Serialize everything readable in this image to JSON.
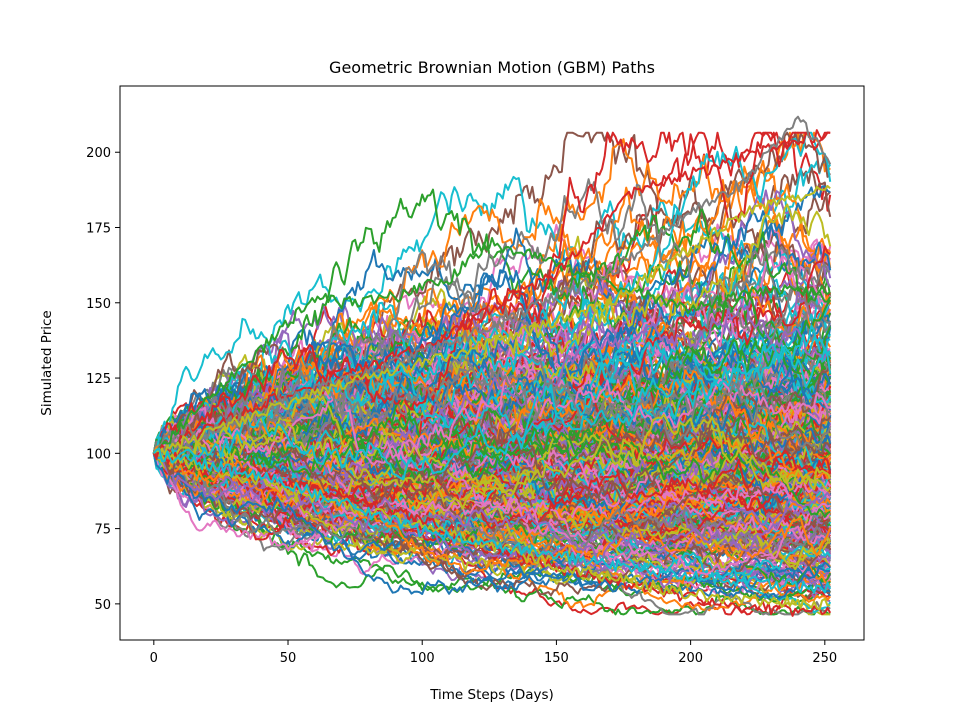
{
  "chart_data": {
    "type": "line",
    "title": "Geometric Brownian Motion (GBM) Paths",
    "xlabel": "Time Steps (Days)",
    "ylabel": "Simulated Price",
    "xlim": [
      -12.6,
      264.6
    ],
    "ylim": [
      38,
      222
    ],
    "xticks": [
      0,
      50,
      100,
      150,
      200,
      250
    ],
    "yticks": [
      50,
      75,
      100,
      125,
      150,
      175,
      200
    ],
    "x_range": [
      0,
      252
    ],
    "start_value": 100,
    "num_paths": 500,
    "final_value_range": [
      46.5,
      206.5
    ],
    "extreme_paths": [
      {
        "x": [
          0,
          60,
          70,
          90,
          110,
          125,
          150,
          180,
          200,
          230,
          252
        ],
        "y": [
          100,
          152,
          150,
          152,
          158,
          170,
          163,
          153,
          148,
          155,
          152
        ],
        "color": "#2ca02c"
      },
      {
        "x": [
          0,
          50,
          100,
          150,
          180,
          210,
          240,
          252
        ],
        "y": [
          100,
          120,
          135,
          160,
          188,
          195,
          204,
          206.5
        ],
        "color": "#d62728"
      },
      {
        "x": [
          0,
          60,
          120,
          170,
          200,
          220,
          240,
          252
        ],
        "y": [
          100,
          121,
          140,
          160,
          180,
          190,
          212,
          196
        ],
        "color": "#7f7f7f"
      },
      {
        "x": [
          0,
          60,
          120,
          170,
          200,
          220,
          252
        ],
        "y": [
          100,
          120,
          135,
          150,
          168,
          180,
          188
        ],
        "color": "#bcbd22"
      },
      {
        "x": [
          0,
          50,
          100,
          150,
          200,
          220,
          252
        ],
        "y": [
          100,
          90,
          78,
          62,
          52,
          49,
          47
        ],
        "color": "#d62728"
      },
      {
        "x": [
          0,
          50,
          100,
          150,
          200,
          252
        ],
        "y": [
          100,
          88,
          76,
          63,
          53,
          49.5
        ],
        "color": "#bcbd22"
      },
      {
        "x": [
          0,
          50,
          100,
          150,
          200,
          252
        ],
        "y": [
          100,
          90,
          74,
          66,
          59,
          55
        ],
        "color": "#17becf"
      }
    ],
    "colors": [
      "#1f77b4",
      "#ff7f0e",
      "#2ca02c",
      "#d62728",
      "#9467bd",
      "#8c564b",
      "#e377c2",
      "#7f7f7f",
      "#bcbd22",
      "#17becf"
    ],
    "grid": false,
    "legend": "none"
  }
}
